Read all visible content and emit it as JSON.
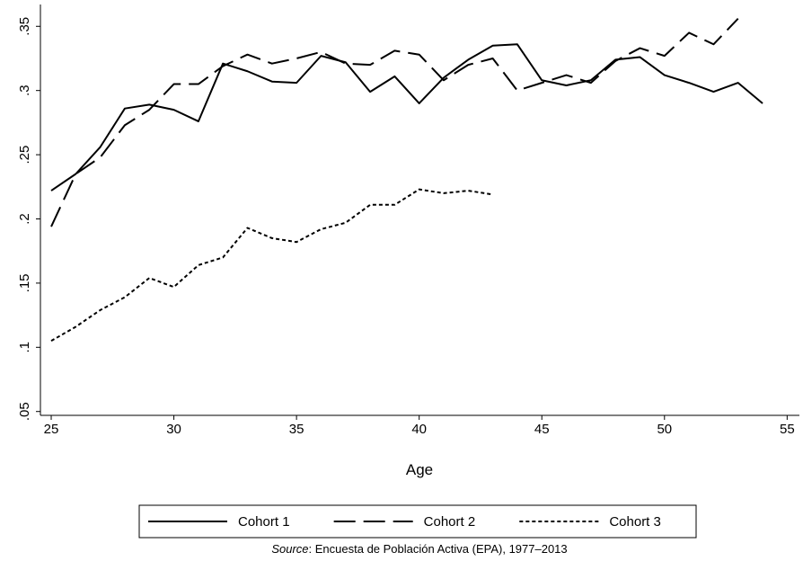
{
  "chart_data": {
    "type": "line",
    "x_label": "Age",
    "x": [
      25,
      26,
      27,
      28,
      29,
      30,
      31,
      32,
      33,
      34,
      35,
      36,
      37,
      38,
      39,
      40,
      41,
      42,
      43,
      44,
      45,
      46,
      47,
      48,
      49,
      50,
      51,
      52,
      53,
      54
    ],
    "series": [
      {
        "name": "Cohort 1",
        "color": "#000000",
        "dash": "solid",
        "values": [
          0.222,
          0.235,
          0.256,
          0.286,
          0.289,
          0.285,
          0.276,
          0.321,
          0.315,
          0.307,
          0.306,
          0.327,
          0.322,
          0.299,
          0.311,
          0.29,
          0.31,
          0.324,
          0.335,
          0.336,
          0.308,
          0.304,
          0.308,
          0.324,
          0.326,
          0.312,
          0.306,
          0.299,
          0.306,
          0.29
        ]
      },
      {
        "name": "Cohort 2",
        "color": "#000000",
        "dash": "longdash",
        "values": [
          0.194,
          0.235,
          0.248,
          0.273,
          0.285,
          0.305,
          0.305,
          0.319,
          0.328,
          0.321,
          0.325,
          0.33,
          0.321,
          0.32,
          0.331,
          0.328,
          0.308,
          0.32,
          0.325,
          0.3,
          0.306,
          0.312,
          0.306,
          0.323,
          0.333,
          0.327,
          0.345,
          0.336,
          0.356,
          null
        ]
      },
      {
        "name": "Cohort 3",
        "color": "#000000",
        "dash": "shortdash",
        "values": [
          0.105,
          0.116,
          0.129,
          0.139,
          0.154,
          0.147,
          0.164,
          0.17,
          0.193,
          0.185,
          0.182,
          0.192,
          0.197,
          0.211,
          0.211,
          0.223,
          0.22,
          0.222,
          0.219,
          null,
          null,
          null,
          null,
          null,
          null,
          null,
          null,
          null,
          null,
          null
        ]
      }
    ],
    "xlim": [
      24.56,
      55.5
    ],
    "xticks": [
      25,
      30,
      35,
      40,
      45,
      50,
      55
    ],
    "ylim": [
      0.047,
      0.367
    ],
    "yticks": [
      {
        "value": 0.05,
        "label": ".05"
      },
      {
        "value": 0.1,
        "label": ".1"
      },
      {
        "value": 0.15,
        "label": ".15"
      },
      {
        "value": 0.2,
        "label": ".2"
      },
      {
        "value": 0.25,
        "label": ".25"
      },
      {
        "value": 0.3,
        "label": ".3"
      },
      {
        "value": 0.35,
        "label": ".35"
      }
    ],
    "legend_position": "bottom",
    "source": {
      "label": "Source",
      "text": ": Encuesta de Población Activa (EPA), 1977–2013"
    }
  }
}
